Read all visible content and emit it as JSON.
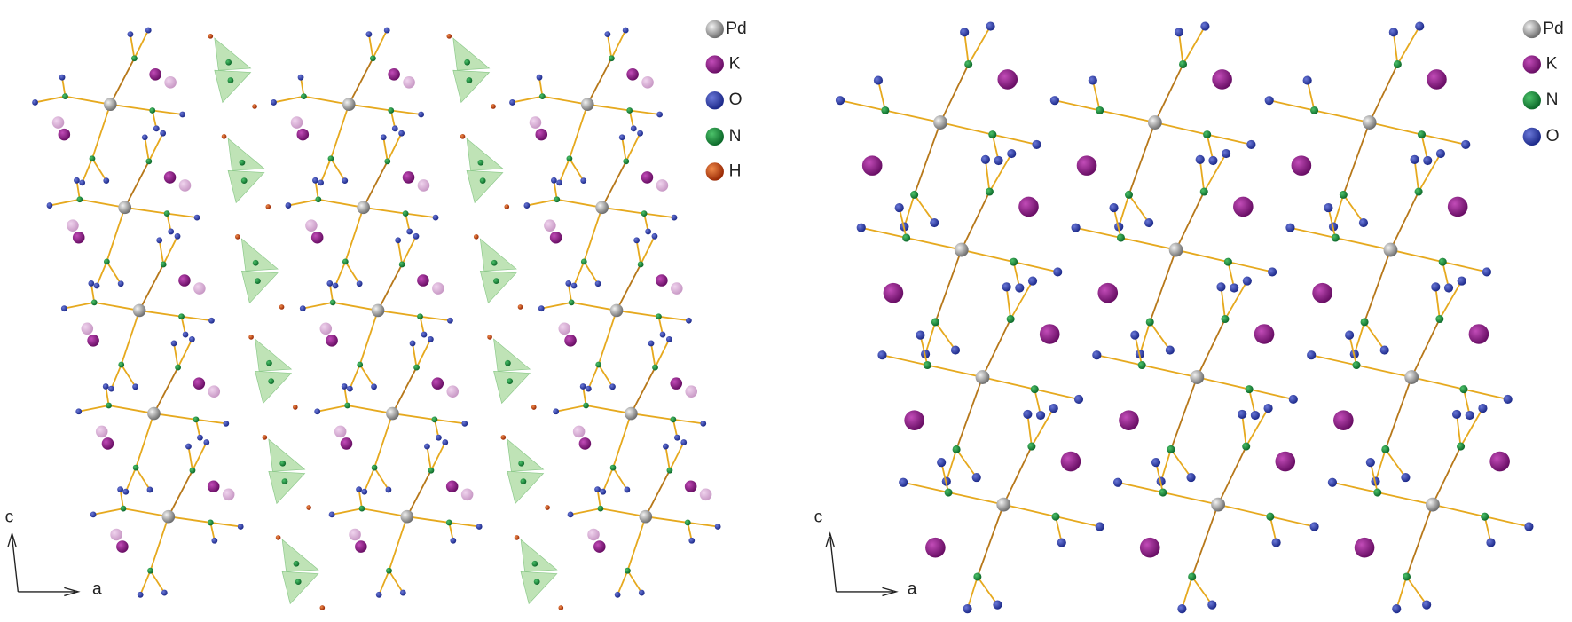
{
  "left_panel": {
    "legend": [
      "Pd",
      "K",
      "O",
      "N",
      "H"
    ],
    "axis_labels": [
      "c",
      "a"
    ]
  },
  "right_panel": {
    "legend": [
      "Pd",
      "K",
      "N",
      "O"
    ],
    "axis_labels": [
      "c",
      "a"
    ]
  }
}
